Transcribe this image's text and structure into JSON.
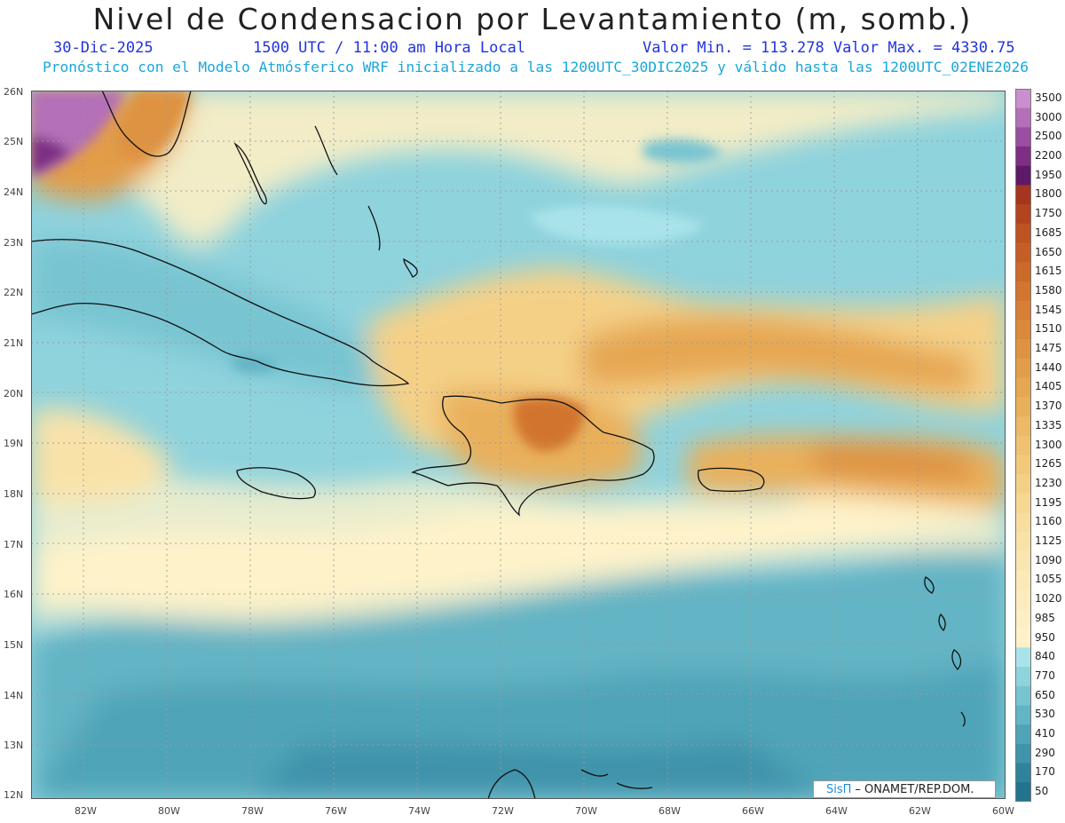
{
  "header": {
    "title": "Nivel de Condensacion por Levantamiento (m, somb.)",
    "date": "30-Dic-2025",
    "time": "1500 UTC / 11:00 am Hora Local",
    "minmax": "Valor Min. = 113.278  Valor Max. = 4330.75",
    "forecast": "Pronóstico con el Modelo Atmósferico WRF inicializado a las 1200UTC_30DIC2025 y válido hasta las  1200UTC_02ENE2026"
  },
  "axes": {
    "lat_labels": [
      "26N",
      "25N",
      "24N",
      "23N",
      "22N",
      "21N",
      "20N",
      "19N",
      "18N",
      "17N",
      "16N",
      "15N",
      "14N",
      "13N",
      "12N"
    ],
    "lon_labels": [
      "82W",
      "80W",
      "78W",
      "76W",
      "74W",
      "72W",
      "70W",
      "68W",
      "66W",
      "64W",
      "62W",
      "60W"
    ]
  },
  "legend": {
    "labels": [
      "3500",
      "3000",
      "2500",
      "2200",
      "1950",
      "1800",
      "1750",
      "1685",
      "1650",
      "1615",
      "1580",
      "1545",
      "1510",
      "1475",
      "1440",
      "1405",
      "1370",
      "1335",
      "1300",
      "1265",
      "1230",
      "1195",
      "1160",
      "1125",
      "1090",
      "1055",
      "1020",
      "985",
      "950",
      "840",
      "770",
      "650",
      "530",
      "410",
      "290",
      "170",
      "50"
    ],
    "colors": [
      "#c98fce",
      "#b46fb8",
      "#9a4ea1",
      "#7c2f84",
      "#5e1a66",
      "#a5351e",
      "#b4441f",
      "#bd5322",
      "#c55f26",
      "#cc6a2a",
      "#d1752f",
      "#d67f35",
      "#da893b",
      "#de9342",
      "#e29d4a",
      "#e6a752",
      "#e9b05c",
      "#ecb966",
      "#efc170",
      "#f2c97b",
      "#f4d087",
      "#f6d793",
      "#f8dd9e",
      "#f9e2a8",
      "#fae6b0",
      "#fbe9b7",
      "#fcecbd",
      "#fdefc4",
      "#fef2cb",
      "#a9e3ea",
      "#8fd3dd",
      "#78c4d1",
      "#63b4c4",
      "#50a4b7",
      "#3f93aa",
      "#30839c",
      "#23728e"
    ]
  },
  "credit": {
    "brand": "SisΠ",
    "text": "– ONAMET/REP.DOM."
  }
}
